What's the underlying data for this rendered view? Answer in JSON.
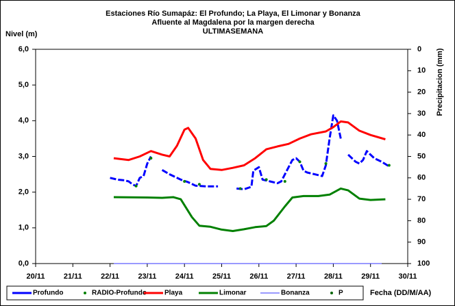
{
  "chart_data": {
    "type": "line",
    "title": "Estaciones Río Sumapáz: El Profundo; La Playa, El Limonar y Bonanza",
    "subtitle": "Afluente al Magdalena por la margen derecha",
    "subtitle2": "ULTIMASEMANA",
    "y_label": "Nivel (m)",
    "y2_label": "Precipitacion (mm)",
    "x_label": "Fecha (DD/M/AA)",
    "xlim": [
      20,
      30
    ],
    "xticks": [
      {
        "value": 20,
        "label": "20/11"
      },
      {
        "value": 21,
        "label": "21/11"
      },
      {
        "value": 22,
        "label": "22/11"
      },
      {
        "value": 23,
        "label": "23/11"
      },
      {
        "value": 24,
        "label": "24/11"
      },
      {
        "value": 25,
        "label": "25/11"
      },
      {
        "value": 26,
        "label": "26/11"
      },
      {
        "value": 27,
        "label": "27/11"
      },
      {
        "value": 28,
        "label": "28/11"
      },
      {
        "value": 29,
        "label": "29/11"
      },
      {
        "value": 30,
        "label": "30/11"
      }
    ],
    "ylim": [
      0,
      6
    ],
    "yticks": [
      {
        "value": 0,
        "label": "0,0"
      },
      {
        "value": 1,
        "label": "1,0"
      },
      {
        "value": 2,
        "label": "2,0"
      },
      {
        "value": 3,
        "label": "3,0"
      },
      {
        "value": 4,
        "label": "4,0"
      },
      {
        "value": 5,
        "label": "5,0"
      },
      {
        "value": 6,
        "label": "6,0"
      }
    ],
    "y2lim": [
      100,
      0
    ],
    "y2ticks": [
      0,
      10,
      20,
      30,
      40,
      50,
      60,
      70,
      80,
      90,
      100
    ],
    "series": [
      {
        "name": "Profundo",
        "color": "#0000ff",
        "style": "dashed",
        "x": [
          22.0,
          22.2,
          22.4,
          22.5,
          22.6,
          22.7,
          22.8,
          22.9,
          23.0,
          23.1,
          23.2,
          23.4,
          23.6,
          23.9,
          24.1,
          24.3,
          24.6,
          24.9,
          25.1,
          25.4,
          25.6,
          25.8,
          25.85,
          26.0,
          26.1,
          26.3,
          26.5,
          26.6,
          26.8,
          26.9,
          27.0,
          27.1,
          27.2,
          27.3,
          27.5,
          27.7,
          27.8,
          27.9,
          28.0,
          28.1,
          28.2,
          28.3,
          28.4,
          28.6,
          28.7,
          28.8,
          28.9,
          29.1,
          29.3,
          29.5
        ],
        "values": [
          2.4,
          2.35,
          2.33,
          2.3,
          2.22,
          2.17,
          2.4,
          2.45,
          2.8,
          3.0,
          null,
          2.62,
          2.5,
          2.35,
          2.28,
          2.18,
          2.16,
          2.16,
          null,
          2.1,
          2.08,
          2.15,
          2.6,
          2.7,
          2.35,
          2.3,
          2.25,
          2.3,
          2.7,
          2.9,
          2.95,
          2.85,
          2.6,
          2.55,
          2.5,
          2.45,
          2.75,
          3.5,
          4.15,
          4.0,
          3.5,
          null,
          3.05,
          2.85,
          2.8,
          2.9,
          3.15,
          2.95,
          2.85,
          2.72
        ]
      },
      {
        "name": "RADIO-Profundo",
        "color": "#008000",
        "style": "dots",
        "x": [
          22.7,
          23.1,
          24.0,
          24.4,
          25.5,
          26.2,
          26.7,
          27.1,
          27.8,
          29.5
        ],
        "values": [
          2.17,
          2.95,
          2.3,
          2.22,
          2.1,
          2.35,
          2.3,
          2.85,
          2.8,
          2.75
        ]
      },
      {
        "name": "Playa",
        "color": "#ff0000",
        "style": "solid",
        "x": [
          22.1,
          22.5,
          22.8,
          23.1,
          23.4,
          23.6,
          23.8,
          24.0,
          24.1,
          24.3,
          24.5,
          24.7,
          25.0,
          25.3,
          25.6,
          25.9,
          26.2,
          26.5,
          26.8,
          27.1,
          27.4,
          27.8,
          28.0,
          28.2,
          28.4,
          28.7,
          29.0,
          29.4
        ],
        "values": [
          2.95,
          2.9,
          3.0,
          3.15,
          3.05,
          3.0,
          3.3,
          3.75,
          3.8,
          3.5,
          2.9,
          2.65,
          2.62,
          2.68,
          2.75,
          2.95,
          3.2,
          3.28,
          3.35,
          3.5,
          3.62,
          3.7,
          3.82,
          3.98,
          3.95,
          3.72,
          3.6,
          3.48
        ]
      },
      {
        "name": "Limonar",
        "color": "#008000",
        "style": "solid",
        "x": [
          22.1,
          23.0,
          23.4,
          23.7,
          23.9,
          24.2,
          24.4,
          24.7,
          25.0,
          25.3,
          25.6,
          25.9,
          26.2,
          26.4,
          26.7,
          26.9,
          27.2,
          27.6,
          27.9,
          28.2,
          28.4,
          28.7,
          29.0,
          29.4
        ],
        "values": [
          1.86,
          1.85,
          1.84,
          1.86,
          1.8,
          1.3,
          1.06,
          1.03,
          0.95,
          0.91,
          0.96,
          1.02,
          1.05,
          1.2,
          1.6,
          1.85,
          1.89,
          1.89,
          1.93,
          2.1,
          2.05,
          1.82,
          1.78,
          1.8
        ]
      },
      {
        "name": "Bonanza",
        "color": "#3333ff",
        "style": "thin",
        "x": [
          22.1,
          29.3
        ],
        "values": [
          0,
          0
        ]
      },
      {
        "name": "P",
        "color": "#006400",
        "style": "dots",
        "x": [],
        "values": []
      }
    ]
  }
}
